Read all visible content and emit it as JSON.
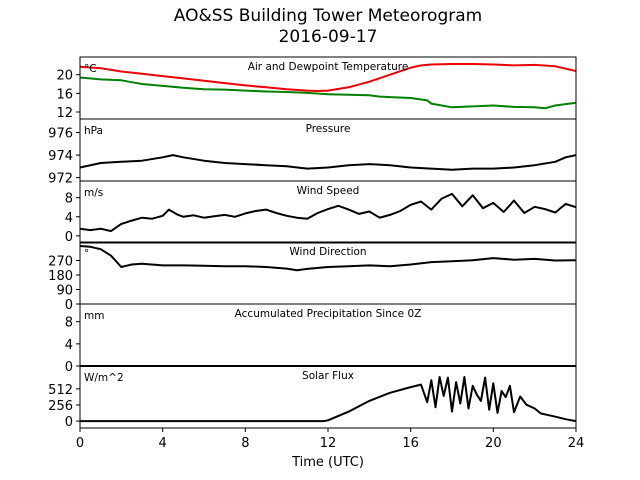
{
  "chart_data": {
    "title": "AO&SS Building Tower Meteorogram",
    "subtitle": "2016-09-17",
    "xlabel": "Time (UTC)",
    "xlim": [
      0,
      24
    ],
    "xticks": [
      "0",
      "4",
      "8",
      "12",
      "16",
      "20",
      "24"
    ],
    "type": "line",
    "panels": [
      {
        "name": "Air and Dewpoint Temperature",
        "unit": "°C",
        "ylim": [
          10.5,
          23.8
        ],
        "yticks": [
          "12",
          "16",
          "20"
        ],
        "series": [
          {
            "color": "#ee0000",
            "x": [
              0,
              1,
              2,
              3,
              4,
              5,
              6,
              7,
              8,
              9,
              10,
              11,
              11.5,
              12,
              13,
              14,
              15,
              16,
              16.5,
              17,
              18,
              19,
              20,
              21,
              22,
              23,
              24
            ],
            "y": [
              21.7,
              21.4,
              20.7,
              20.2,
              19.7,
              19.2,
              18.7,
              18.2,
              17.7,
              17.3,
              16.9,
              16.6,
              16.5,
              16.6,
              17.3,
              18.5,
              20.0,
              21.5,
              22.0,
              22.2,
              22.3,
              22.3,
              22.2,
              22.0,
              22.1,
              21.8,
              20.8
            ]
          },
          {
            "color": "#008000",
            "x": [
              0,
              1,
              2,
              2.5,
              3,
              4,
              5,
              6,
              7,
              8,
              9,
              10,
              11,
              12,
              13,
              14,
              14.5,
              15,
              16,
              16.8,
              17,
              18,
              19,
              20,
              21,
              22,
              22.5,
              23,
              24
            ],
            "y": [
              19.4,
              19.0,
              18.8,
              18.4,
              18.0,
              17.6,
              17.2,
              16.9,
              16.8,
              16.6,
              16.4,
              16.3,
              16.1,
              15.8,
              15.7,
              15.6,
              15.3,
              15.2,
              15.0,
              14.5,
              13.8,
              13.0,
              13.2,
              13.4,
              13.1,
              13.0,
              12.8,
              13.4,
              14.0
            ]
          }
        ]
      },
      {
        "name": "Pressure",
        "unit": "hPa",
        "ylim": [
          971.7,
          977.2
        ],
        "yticks": [
          "972",
          "974",
          "976"
        ],
        "series": [
          {
            "color": "#000000",
            "x": [
              0,
              1,
              2,
              3,
              4,
              4.5,
              5,
              6,
              7,
              8,
              9,
              10,
              11,
              12,
              13,
              14,
              15,
              16,
              17,
              18,
              19,
              20,
              21,
              22,
              23,
              23.5,
              24
            ],
            "y": [
              972.9,
              973.3,
              973.4,
              973.5,
              973.8,
              974.0,
              973.8,
              973.5,
              973.3,
              973.2,
              973.1,
              973.0,
              972.8,
              972.9,
              973.1,
              973.2,
              973.1,
              972.9,
              972.8,
              972.7,
              972.8,
              972.8,
              972.9,
              973.1,
              973.4,
              973.8,
              974.0
            ]
          }
        ]
      },
      {
        "name": "Wind Speed",
        "unit": "m/s",
        "ylim": [
          -1.5,
          11.5
        ],
        "yticks": [
          "0",
          "4",
          "8"
        ],
        "series": [
          {
            "color": "#000000",
            "x": [
              0,
              0.5,
              1,
              1.5,
              2,
              2.5,
              3,
              3.5,
              4,
              4.3,
              4.7,
              5,
              5.5,
              6,
              6.5,
              7,
              7.5,
              8,
              8.5,
              9,
              9.5,
              10,
              10.5,
              11,
              11.5,
              12,
              12.5,
              13,
              13.5,
              14,
              14.5,
              15,
              15.5,
              16,
              16.5,
              17,
              17.5,
              18,
              18.5,
              19,
              19.5,
              20,
              20.5,
              21,
              21.5,
              22,
              22.5,
              23,
              23.5,
              24
            ],
            "y": [
              1.5,
              1.2,
              1.5,
              1.0,
              2.5,
              3.2,
              3.8,
              3.6,
              4.2,
              5.5,
              4.5,
              4.0,
              4.3,
              3.8,
              4.1,
              4.4,
              4.0,
              4.7,
              5.2,
              5.5,
              4.8,
              4.2,
              3.8,
              3.6,
              4.8,
              5.6,
              6.3,
              5.5,
              4.6,
              5.1,
              3.8,
              4.4,
              5.2,
              6.5,
              7.2,
              5.5,
              7.8,
              8.8,
              6.2,
              8.5,
              5.8,
              6.9,
              5.0,
              7.4,
              4.8,
              6.1,
              5.6,
              4.9,
              6.7,
              6.0
            ]
          }
        ]
      },
      {
        "name": "Wind Direction",
        "unit": "°",
        "ylim": [
          0,
          385
        ],
        "yticks": [
          "0",
          "90",
          "180",
          "270"
        ],
        "series": [
          {
            "color": "#000000",
            "x": [
              0,
              0.5,
              1,
              1.5,
              2,
              2.5,
              3,
              4,
              5,
              6,
              7,
              8,
              9,
              10,
              10.5,
              11,
              12,
              13,
              14,
              15,
              16,
              17,
              18,
              19,
              20,
              21,
              22,
              23,
              24
            ],
            "y": [
              360,
              355,
              340,
              300,
              230,
              245,
              250,
              240,
              240,
              238,
              235,
              235,
              230,
              220,
              210,
              218,
              230,
              235,
              240,
              235,
              245,
              260,
              265,
              272,
              285,
              275,
              280,
              270,
              272
            ]
          }
        ]
      },
      {
        "name": "Accumulated Precipitation Since 0Z",
        "unit": "mm",
        "ylim": [
          0,
          11.2
        ],
        "yticks": [
          "0",
          "4",
          "8"
        ],
        "series": [
          {
            "color": "#000000",
            "x": [
              0,
              24
            ],
            "y": [
              0,
              0
            ]
          }
        ]
      },
      {
        "name": "Solar Flux",
        "unit": "W/m^2",
        "ylim": [
          -110,
          875
        ],
        "yticks": [
          "0",
          "256",
          "512"
        ],
        "series": [
          {
            "color": "#000000",
            "x": [
              0,
              11.8,
              12,
              13,
              14,
              15,
              16,
              16.5,
              16.8,
              17.0,
              17.2,
              17.4,
              17.6,
              17.8,
              18.0,
              18.2,
              18.4,
              18.6,
              18.8,
              19.0,
              19.2,
              19.4,
              19.6,
              19.8,
              20.0,
              20.2,
              20.4,
              20.6,
              20.8,
              21.0,
              21.3,
              21.6,
              22.0,
              22.3,
              22.6,
              23.0,
              23.5,
              24
            ],
            "y": [
              0,
              0,
              12,
              150,
              320,
              450,
              540,
              580,
              300,
              650,
              220,
              700,
              400,
              690,
              150,
              620,
              280,
              700,
              200,
              560,
              420,
              320,
              690,
              180,
              600,
              130,
              480,
              380,
              560,
              140,
              390,
              260,
              200,
              120,
              100,
              70,
              30,
              0
            ]
          }
        ]
      }
    ]
  }
}
